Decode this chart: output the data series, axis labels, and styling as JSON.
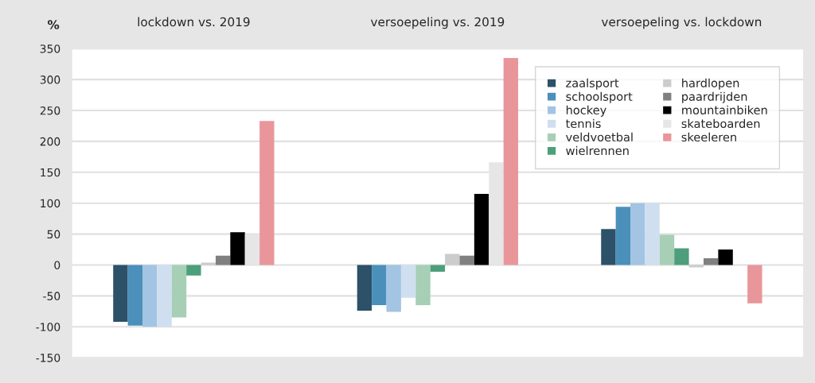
{
  "chart_data": {
    "type": "bar",
    "categories": [
      "lockdown vs. 2019",
      "versoepeling vs. 2019",
      "versoepeling vs. lockdown"
    ],
    "ylabel": "%",
    "ylim": [
      -150,
      350
    ],
    "yticks": [
      -150,
      -100,
      -50,
      0,
      50,
      100,
      150,
      200,
      250,
      300,
      350
    ],
    "grid": "y",
    "legend": "top right",
    "series": [
      {
        "name": "zaalsport",
        "color": "#2c5168",
        "values": [
          -92,
          -74,
          58
        ]
      },
      {
        "name": "schoolsport",
        "color": "#4a90bb",
        "values": [
          -98,
          -65,
          94
        ]
      },
      {
        "name": "hockey",
        "color": "#a3c4e2",
        "values": [
          -100,
          -76,
          100
        ]
      },
      {
        "name": "tennis",
        "color": "#cfdff0",
        "values": [
          -100,
          -53,
          100
        ]
      },
      {
        "name": "veldvoetbal",
        "color": "#a6cfb5",
        "values": [
          -85,
          -65,
          49
        ]
      },
      {
        "name": "wielrennen",
        "color": "#4c9f7a",
        "values": [
          -17,
          -11,
          27
        ]
      },
      {
        "name": "hardlopen",
        "color": "#cccccc",
        "values": [
          4,
          18,
          -4
        ]
      },
      {
        "name": "paardrijden",
        "color": "#808080",
        "values": [
          15,
          15,
          11
        ]
      },
      {
        "name": "mountainbiken",
        "color": "#000000",
        "values": [
          53,
          115,
          25
        ]
      },
      {
        "name": "skateboarden",
        "color": "#e6e6e6",
        "values": [
          50,
          166,
          0
        ]
      },
      {
        "name": "skeeleren",
        "color": "#e8969a",
        "values": [
          233,
          335,
          -62
        ]
      }
    ]
  }
}
